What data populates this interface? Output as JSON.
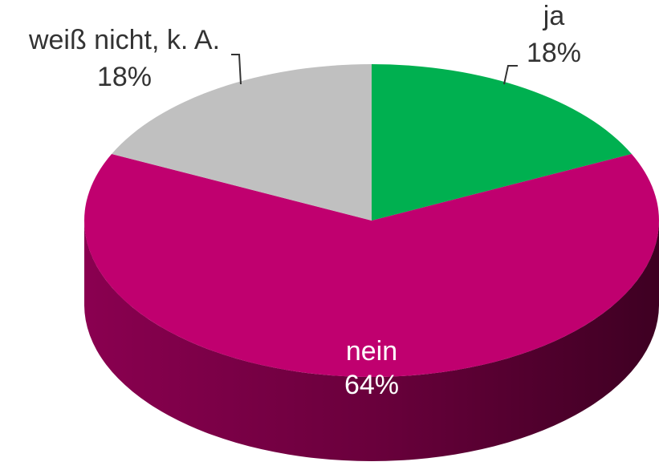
{
  "chart_data": {
    "type": "pie",
    "categories": [
      "ja",
      "nein",
      "weiß nicht, k. A."
    ],
    "values": [
      18,
      64,
      18
    ],
    "value_labels": [
      "18%",
      "64%",
      "18%"
    ],
    "colors": [
      "#00b050",
      "#c0006f",
      "#c0c0c0"
    ]
  }
}
